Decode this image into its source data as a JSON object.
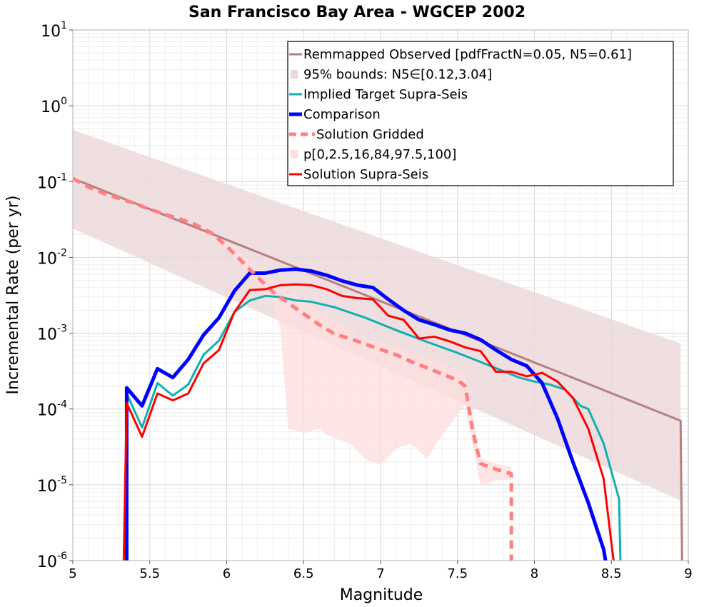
{
  "chart_data": {
    "type": "line",
    "title": "San Francisco Bay Area - WGCEP 2002",
    "xlabel": "Magnitude",
    "ylabel": "Incremental Rate (per yr)",
    "xlim": [
      5,
      9
    ],
    "ylim": [
      1e-06,
      10
    ],
    "yscale": "log",
    "grid": true,
    "legend_position": "top-right",
    "x_ticks": [
      "5",
      "5.5",
      "6",
      "6.5",
      "7",
      "7.5",
      "8",
      "8.5",
      "9"
    ],
    "y_ticks": [
      {
        "base": "10",
        "exp": "1"
      },
      {
        "base": "10",
        "exp": "0"
      },
      {
        "base": "10",
        "exp": "-1"
      },
      {
        "base": "10",
        "exp": "-2"
      },
      {
        "base": "10",
        "exp": "-3"
      },
      {
        "base": "10",
        "exp": "-4"
      },
      {
        "base": "10",
        "exp": "-5"
      },
      {
        "base": "10",
        "exp": "-6"
      }
    ],
    "bands": [
      {
        "name": "95% bounds: N5∈[0.12,3.04]",
        "color": "#ecd9db",
        "upper": [
          [
            5.0,
            0.48
          ],
          [
            8.95,
            0.00073
          ]
        ],
        "lower": [
          [
            5.0,
            0.024
          ],
          [
            8.95,
            6.2e-06
          ]
        ]
      },
      {
        "name": "p[0,2.5,16,84,97.5,100]",
        "color": "#ffdddd",
        "upper": [
          [
            5.5,
            0.045
          ],
          [
            5.75,
            0.026
          ],
          [
            5.85,
            0.021
          ],
          [
            6.0,
            0.016
          ],
          [
            6.1,
            0.011
          ],
          [
            6.2,
            0.0077
          ],
          [
            6.3,
            0.0054
          ],
          [
            6.4,
            0.0038
          ],
          [
            6.5,
            0.0027
          ],
          [
            6.6,
            0.002
          ],
          [
            6.7,
            0.0015
          ],
          [
            6.8,
            0.0011
          ],
          [
            6.9,
            0.00085
          ],
          [
            7.0,
            0.00075
          ],
          [
            7.1,
            0.00065
          ],
          [
            7.2,
            0.00055
          ],
          [
            7.3,
            0.00047
          ],
          [
            7.4,
            0.0004
          ],
          [
            7.5,
            0.00034
          ],
          [
            7.55,
            0.0003
          ],
          [
            7.65,
            2.2e-05
          ],
          [
            7.75,
            1.9e-05
          ],
          [
            7.85,
            1.7e-05
          ]
        ],
        "lower": [
          [
            5.5,
            0.045
          ],
          [
            5.75,
            0.026
          ],
          [
            5.85,
            0.02
          ],
          [
            6.0,
            0.013
          ],
          [
            6.1,
            0.0075
          ],
          [
            6.2,
            0.0045
          ],
          [
            6.3,
            0.0025
          ],
          [
            6.35,
            0.0011
          ],
          [
            6.4,
            5.5e-05
          ],
          [
            6.5,
            4.8e-05
          ],
          [
            6.6,
            5.5e-05
          ],
          [
            6.65,
            4.5e-05
          ],
          [
            6.8,
            3.5e-05
          ],
          [
            6.9,
            2.2e-05
          ],
          [
            7.0,
            1.8e-05
          ],
          [
            7.1,
            3e-05
          ],
          [
            7.2,
            3.5e-05
          ],
          [
            7.3,
            2.2e-05
          ],
          [
            7.4,
            4.5e-05
          ],
          [
            7.5,
            8.5e-05
          ],
          [
            7.55,
            0.00011
          ],
          [
            7.65,
            9.5e-06
          ],
          [
            7.75,
            1.15e-05
          ],
          [
            7.85,
            1.15e-05
          ]
        ]
      }
    ],
    "series": [
      {
        "name": "Remmapped Observed [pdfFractN=0.05, N5=0.61]",
        "color": "#b87e7e",
        "width": 3,
        "dash": "",
        "points": [
          [
            5.0,
            0.11
          ],
          [
            8.95,
            7e-05
          ],
          [
            8.96,
            8e-07
          ]
        ]
      },
      {
        "name": "Implied Target Supra-Seis",
        "color": "#10b0b0",
        "width": 3,
        "dash": "",
        "points": [
          [
            5.35,
            1e-06
          ],
          [
            5.35,
            0.00016
          ],
          [
            5.45,
            5.7e-05
          ],
          [
            5.55,
            0.00022
          ],
          [
            5.65,
            0.00015
          ],
          [
            5.75,
            0.00021
          ],
          [
            5.85,
            0.00052
          ],
          [
            5.95,
            0.0008
          ],
          [
            6.05,
            0.0019
          ],
          [
            6.15,
            0.0027
          ],
          [
            6.25,
            0.0031
          ],
          [
            6.35,
            0.003
          ],
          [
            6.45,
            0.0027
          ],
          [
            6.55,
            0.0026
          ],
          [
            6.7,
            0.0022
          ],
          [
            6.9,
            0.0016
          ],
          [
            7.1,
            0.0011
          ],
          [
            7.3,
            0.00077
          ],
          [
            7.5,
            0.00055
          ],
          [
            7.7,
            0.00038
          ],
          [
            7.9,
            0.00026
          ],
          [
            8.0,
            0.00023
          ],
          [
            8.1,
            0.00021
          ],
          [
            8.2,
            0.00018
          ],
          [
            8.3,
            0.00011
          ],
          [
            8.35,
            0.0001
          ],
          [
            8.45,
            3.5e-05
          ],
          [
            8.55,
            6.5e-06
          ],
          [
            8.56,
            8e-07
          ]
        ]
      },
      {
        "name": "Comparison",
        "color": "#0000ff",
        "width": 5,
        "dash": "",
        "points": [
          [
            5.35,
            1e-06
          ],
          [
            5.35,
            0.00019
          ],
          [
            5.45,
            0.00011
          ],
          [
            5.55,
            0.00034
          ],
          [
            5.65,
            0.00026
          ],
          [
            5.75,
            0.00045
          ],
          [
            5.85,
            0.00095
          ],
          [
            5.95,
            0.0016
          ],
          [
            6.05,
            0.0036
          ],
          [
            6.15,
            0.0062
          ],
          [
            6.25,
            0.0062
          ],
          [
            6.35,
            0.0068
          ],
          [
            6.45,
            0.007
          ],
          [
            6.55,
            0.0066
          ],
          [
            6.65,
            0.0058
          ],
          [
            6.75,
            0.0049
          ],
          [
            6.85,
            0.0043
          ],
          [
            6.95,
            0.004
          ],
          [
            7.05,
            0.0028
          ],
          [
            7.15,
            0.002
          ],
          [
            7.25,
            0.0015
          ],
          [
            7.35,
            0.0013
          ],
          [
            7.45,
            0.0011
          ],
          [
            7.55,
            0.001
          ],
          [
            7.65,
            0.00082
          ],
          [
            7.75,
            0.0006
          ],
          [
            7.85,
            0.00045
          ],
          [
            7.95,
            0.00037
          ],
          [
            8.05,
            0.00022
          ],
          [
            8.15,
            7.5e-05
          ],
          [
            8.25,
            2e-05
          ],
          [
            8.35,
            5.8e-06
          ],
          [
            8.45,
            1.4e-06
          ],
          [
            8.47,
            8e-07
          ]
        ]
      },
      {
        "name": "Solution Gridded",
        "color": "#ff8080",
        "width": 5,
        "dash": "12,8",
        "points": [
          [
            5.0,
            0.11
          ],
          [
            5.1,
            0.085
          ],
          [
            5.2,
            0.07
          ],
          [
            5.3,
            0.06
          ],
          [
            5.4,
            0.052
          ],
          [
            5.5,
            0.043
          ],
          [
            5.6,
            0.037
          ],
          [
            5.7,
            0.032
          ],
          [
            5.8,
            0.027
          ],
          [
            5.9,
            0.021
          ],
          [
            6.0,
            0.014
          ],
          [
            6.1,
            0.0088
          ],
          [
            6.2,
            0.0055
          ],
          [
            6.3,
            0.0035
          ],
          [
            6.4,
            0.0025
          ],
          [
            6.5,
            0.0018
          ],
          [
            6.6,
            0.0013
          ],
          [
            6.7,
            0.00098
          ],
          [
            6.8,
            0.00085
          ],
          [
            6.9,
            0.00072
          ],
          [
            7.0,
            0.00061
          ],
          [
            7.1,
            0.00052
          ],
          [
            7.2,
            0.00042
          ],
          [
            7.3,
            0.00035
          ],
          [
            7.4,
            0.00029
          ],
          [
            7.5,
            0.00024
          ],
          [
            7.55,
            0.0002
          ],
          [
            7.6,
            5e-05
          ],
          [
            7.65,
            1.9e-05
          ],
          [
            7.75,
            1.6e-05
          ],
          [
            7.85,
            1.4e-05
          ],
          [
            7.85,
            8e-07
          ]
        ]
      },
      {
        "name": "Solution Supra-Seis",
        "color": "#ff0000",
        "width": 3,
        "dash": "",
        "points": [
          [
            5.33,
            8e-07
          ],
          [
            5.35,
            0.00012
          ],
          [
            5.45,
            4.3e-05
          ],
          [
            5.55,
            0.00016
          ],
          [
            5.65,
            0.00013
          ],
          [
            5.75,
            0.00016
          ],
          [
            5.85,
            0.0004
          ],
          [
            5.95,
            0.0006
          ],
          [
            6.05,
            0.0019
          ],
          [
            6.15,
            0.0037
          ],
          [
            6.25,
            0.0038
          ],
          [
            6.35,
            0.0043
          ],
          [
            6.45,
            0.0044
          ],
          [
            6.55,
            0.0043
          ],
          [
            6.65,
            0.0038
          ],
          [
            6.75,
            0.0031
          ],
          [
            6.85,
            0.0029
          ],
          [
            6.95,
            0.0028
          ],
          [
            7.05,
            0.0017
          ],
          [
            7.15,
            0.0015
          ],
          [
            7.25,
            0.00085
          ],
          [
            7.35,
            0.0009
          ],
          [
            7.45,
            0.00078
          ],
          [
            7.55,
            0.00065
          ],
          [
            7.65,
            0.00058
          ],
          [
            7.75,
            0.00031
          ],
          [
            7.85,
            0.00031
          ],
          [
            7.95,
            0.00027
          ],
          [
            8.05,
            0.0003
          ],
          [
            8.15,
            0.00023
          ],
          [
            8.25,
            0.00014
          ],
          [
            8.35,
            5.5e-05
          ],
          [
            8.45,
            1.2e-05
          ],
          [
            8.52,
            8e-07
          ]
        ]
      }
    ],
    "legend": [
      {
        "label": "Remmapped Observed [pdfFractN=0.05, N5=0.61]",
        "kind": "line",
        "color": "#b87e7e",
        "width": 3,
        "dash": ""
      },
      {
        "label": "95% bounds: N5∈[0.12,3.04]",
        "kind": "band",
        "color": "#ecd9db"
      },
      {
        "label": "Implied Target Supra-Seis",
        "kind": "line",
        "color": "#10b0b0",
        "width": 3,
        "dash": ""
      },
      {
        "label": "Comparison",
        "kind": "line",
        "color": "#0000ff",
        "width": 5,
        "dash": ""
      },
      {
        "label": "Solution Gridded",
        "kind": "line",
        "color": "#ff8080",
        "width": 5,
        "dash": "12,8"
      },
      {
        "label": "p[0,2.5,16,84,97.5,100]",
        "kind": "band",
        "color": "#ffdddd"
      },
      {
        "label": "Solution Supra-Seis",
        "kind": "line",
        "color": "#ff0000",
        "width": 3,
        "dash": ""
      }
    ]
  }
}
